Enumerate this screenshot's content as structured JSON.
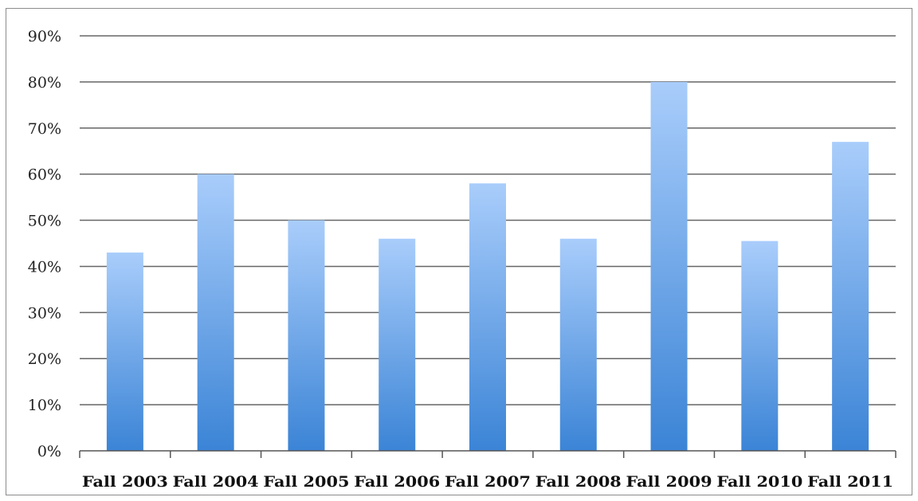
{
  "chart_data": {
    "type": "bar",
    "categories": [
      "Fall 2003",
      "Fall 2004",
      "Fall 2005",
      "Fall 2006",
      "Fall 2007",
      "Fall 2008",
      "Fall 2009",
      "Fall 2010",
      "Fall 2011"
    ],
    "values": [
      43,
      60,
      50,
      46,
      58,
      46,
      80,
      45.5,
      67
    ],
    "value_unit": "%",
    "title": "",
    "xlabel": "",
    "ylabel": "",
    "ylim": [
      0,
      90
    ],
    "yticks": [
      0,
      10,
      20,
      30,
      40,
      50,
      60,
      70,
      80,
      90
    ],
    "ytick_labels": [
      "0%",
      "10%",
      "20%",
      "30%",
      "40%",
      "50%",
      "60%",
      "70%",
      "80%",
      "90%"
    ],
    "grid": true,
    "legend": "none",
    "colors": {
      "bar_top": "#a9cdfb",
      "bar_bottom": "#3b84d6",
      "gridline": "#666666",
      "axis": "#555555"
    }
  }
}
